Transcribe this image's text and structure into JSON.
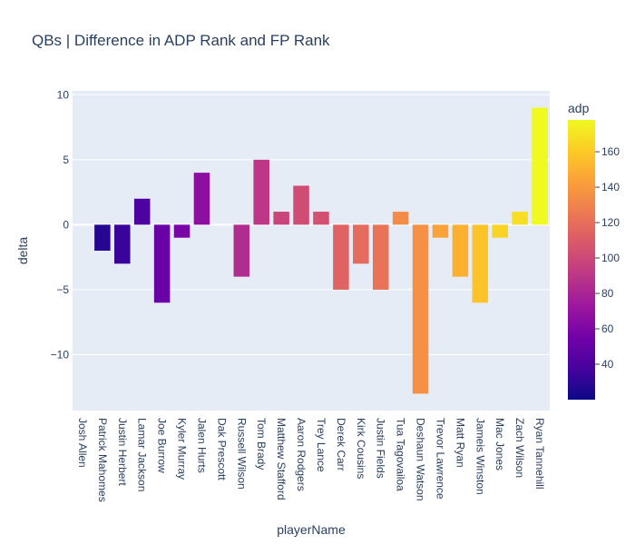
{
  "chart_data": {
    "type": "bar",
    "title": "QBs | Difference in ADP Rank and FP Rank",
    "xlabel": "playerName",
    "ylabel": "delta",
    "ylim": [
      -14.3,
      10.3
    ],
    "yticks": [
      10,
      5,
      0,
      -5,
      -10
    ],
    "ytick_labels": [
      "10",
      "5",
      "0",
      "−5",
      "−10"
    ],
    "grid": true,
    "categories": [
      "Josh Allen",
      "Patrick Mahomes",
      "Justin Herbert",
      "Lamar Jackson",
      "Joe Burrow",
      "Kyler Murray",
      "Jalen Hurts",
      "Dak Prescott",
      "Russell Wilson",
      "Tom Brady",
      "Matthew Stafford",
      "Aaron Rodgers",
      "Trey Lance",
      "Derek Carr",
      "Kirk Cousins",
      "Justin Fields",
      "Tua Tagovailoa",
      "Deshaun Watson",
      "Trevor Lawrence",
      "Matt Ryan",
      "Jameis Winston",
      "Mac Jones",
      "Zach Wilson",
      "Ryan Tannehill"
    ],
    "values": [
      0,
      -2,
      -3,
      2,
      -6,
      -1,
      4,
      0,
      -4,
      5,
      1,
      3,
      1,
      -5,
      -3,
      -5,
      1,
      -13,
      -1,
      -4,
      -6,
      -1,
      1,
      9
    ],
    "adp": [
      20,
      28,
      34,
      40,
      52,
      58,
      66,
      72,
      84,
      90,
      98,
      102,
      104,
      114,
      118,
      122,
      134,
      136,
      144,
      150,
      158,
      164,
      168,
      178
    ],
    "colorbar": {
      "title": "adp",
      "range": [
        20,
        178
      ],
      "ticks": [
        40,
        60,
        80,
        100,
        120,
        140,
        160
      ],
      "colorscale": [
        "#0d0887",
        "#46039f",
        "#7201a8",
        "#9c179e",
        "#bd3786",
        "#d8576b",
        "#ed7953",
        "#fb9f3a",
        "#fdca26",
        "#f0f921"
      ]
    },
    "plot_bg": "#e5ecf6"
  }
}
